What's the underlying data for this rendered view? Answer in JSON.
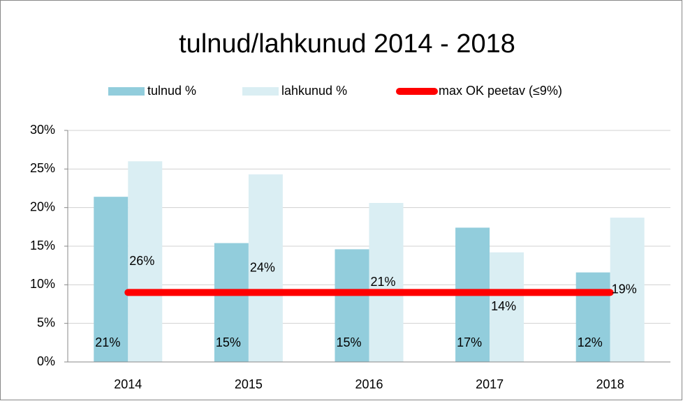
{
  "chart_data": {
    "type": "bar",
    "title": "tulnud/lahkunud 2014 - 2018",
    "categories": [
      "2014",
      "2015",
      "2016",
      "2017",
      "2018"
    ],
    "series": [
      {
        "name": "tulnud %",
        "type": "bar",
        "color": "#92cddc",
        "values": [
          21.4,
          15.4,
          14.6,
          17.4,
          11.6
        ],
        "value_labels": [
          "21%",
          "15%",
          "15%",
          "17%",
          "12%"
        ]
      },
      {
        "name": "lahkunud %",
        "type": "bar",
        "color": "#daeef3",
        "values": [
          26.0,
          24.3,
          20.6,
          14.2,
          18.7
        ],
        "value_labels": [
          "26%",
          "24%",
          "21%",
          "14%",
          "19%"
        ]
      },
      {
        "name": "max OK peetav (≤9%)",
        "type": "line",
        "color": "#ff0000",
        "values": [
          9,
          9,
          9,
          9,
          9
        ]
      }
    ],
    "ylim": [
      0,
      30
    ],
    "yticks": [
      {
        "value": 0,
        "label": "0%"
      },
      {
        "value": 5,
        "label": "5%"
      },
      {
        "value": 10,
        "label": "10%"
      },
      {
        "value": 15,
        "label": "15%"
      },
      {
        "value": 20,
        "label": "20%"
      },
      {
        "value": 25,
        "label": "25%"
      },
      {
        "value": 30,
        "label": "30%"
      }
    ],
    "grid": true,
    "legend": "top"
  }
}
